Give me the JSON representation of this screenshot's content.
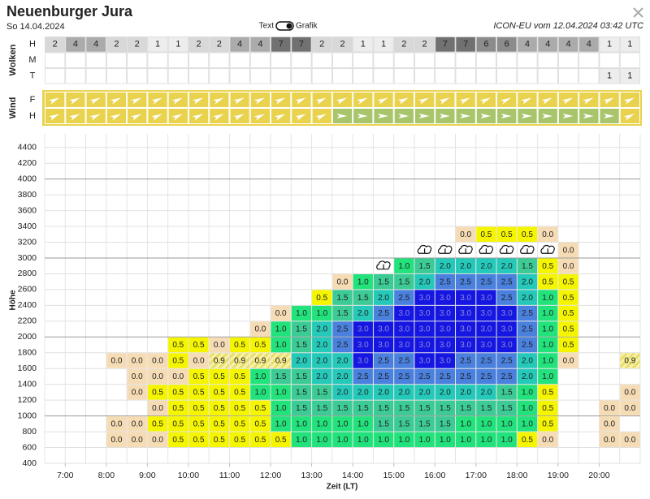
{
  "header": {
    "title": "Neuenburger Jura",
    "date": "So 14.04.2024",
    "toggle": {
      "left": "Text",
      "right": "Grafik"
    },
    "model": "ICON-EU vom 12.04.2024 03:42 UTC"
  },
  "clouds": {
    "label": "Wolken",
    "colors": {
      "1": "#ededed",
      "2": "#d8d8d8",
      "4": "#ababab",
      "6": "#8c8c8c",
      "7": "#717171"
    },
    "rows": [
      {
        "label": "H",
        "values": [
          "2",
          "4",
          "4",
          "2",
          "2",
          "1",
          "1",
          "2",
          "2",
          "4",
          "4",
          "7",
          "7",
          "2",
          "2",
          "1",
          "1",
          "2",
          "2",
          "7",
          "7",
          "6",
          "6",
          "4",
          "4",
          "4",
          "4",
          "1",
          "1"
        ]
      },
      {
        "label": "M",
        "values": [
          null,
          null,
          null,
          null,
          null,
          null,
          null,
          null,
          null,
          null,
          null,
          null,
          null,
          null,
          null,
          null,
          null,
          null,
          null,
          null,
          null,
          null,
          null,
          null,
          null,
          null,
          null,
          null,
          null
        ]
      },
      {
        "label": "T",
        "values": [
          null,
          null,
          null,
          null,
          null,
          null,
          null,
          null,
          null,
          null,
          null,
          null,
          null,
          null,
          null,
          null,
          null,
          null,
          null,
          null,
          null,
          null,
          null,
          null,
          null,
          null,
          null,
          "1",
          "1"
        ]
      }
    ]
  },
  "wind": {
    "label": "Wind",
    "palette": {
      "y": "#e9d34e",
      "g": "#a9c56c"
    },
    "rows": [
      {
        "label": "F",
        "codes": "yyyyyyyyyyyyyyyyyyyyyyyyyyyyy"
      },
      {
        "label": "H",
        "codes": "yyyyyyyyyyyyyyggggggggggggggy"
      }
    ]
  },
  "height_chart": {
    "y_label": "Höhe",
    "x_label": "Zeit (LT)",
    "ylim": [
      400,
      4500
    ],
    "xlim": [
      6.5,
      21
    ],
    "yticks": [
      400,
      600,
      800,
      1000,
      1200,
      1400,
      1600,
      1800,
      2000,
      2200,
      2400,
      2600,
      2800,
      3000,
      3200,
      3400,
      3600,
      3800,
      4000,
      4200,
      4400
    ],
    "major_yticks": [
      1000,
      2000,
      3000,
      4000
    ],
    "xticks": [
      {
        "value": 7,
        "label": "7:00"
      },
      {
        "value": 8,
        "label": "8:00"
      },
      {
        "value": 9,
        "label": "9:00"
      },
      {
        "value": 10,
        "label": "10:00"
      },
      {
        "value": 11,
        "label": "11:00"
      },
      {
        "value": 12,
        "label": "12:00"
      },
      {
        "value": 13,
        "label": "13:00"
      },
      {
        "value": 14,
        "label": "14:00"
      },
      {
        "value": 15,
        "label": "15:00"
      },
      {
        "value": 16,
        "label": "16:00"
      },
      {
        "value": 17,
        "label": "17:00"
      },
      {
        "value": 18,
        "label": "18:00"
      },
      {
        "value": 19,
        "label": "19:00"
      },
      {
        "value": 20,
        "label": "20:00"
      }
    ],
    "cell_colors": {
      "0.0": "#f6dcb5",
      "0.5": "#f5f500",
      "0.9": "#f7f2a8",
      "1.0": "#22e27c",
      "1.5": "#3ccb95",
      "2.0": "#24c9b9",
      "2.5": "#4a80de",
      "3.0": "#1616e2"
    },
    "hatched": [
      "0.9"
    ],
    "rows": [
      {
        "from": 600,
        "to": 800,
        "cells": [
          null,
          null,
          null,
          "0.0",
          "0.0",
          "0.0",
          "0.5",
          "0.5",
          "0.5",
          "0.5",
          "0.5",
          "0.5",
          "1.0",
          "1.0",
          "1.0",
          "1.0",
          "1.0",
          "1.0",
          "1.0",
          "1.0",
          "1.0",
          "1.0",
          "1.0",
          "0.5",
          "0.0",
          null,
          null,
          "0.0",
          "0.0"
        ]
      },
      {
        "from": 800,
        "to": 1000,
        "cells": [
          null,
          null,
          null,
          "0.0",
          "0.0",
          "0.5",
          "0.5",
          "0.5",
          "0.5",
          "0.5",
          "0.5",
          "1.0",
          "1.0",
          "1.0",
          "1.0",
          "1.0",
          "1.5",
          "1.5",
          "1.5",
          "1.5",
          "1.0",
          "1.0",
          "1.0",
          "1.0",
          "0.5",
          null,
          null,
          "0.0",
          null
        ]
      },
      {
        "from": 1000,
        "to": 1200,
        "cells": [
          null,
          null,
          null,
          null,
          null,
          "0.0",
          "0.5",
          "0.5",
          "0.5",
          "0.5",
          "0.5",
          "1.0",
          "1.5",
          "1.5",
          "1.5",
          "1.5",
          "1.5",
          "1.5",
          "1.5",
          "1.5",
          "1.5",
          "1.5",
          "1.5",
          "1.0",
          "0.5",
          null,
          null,
          "0.0",
          "0.0"
        ]
      },
      {
        "from": 1200,
        "to": 1400,
        "cells": [
          null,
          null,
          null,
          null,
          "0.0",
          "0.5",
          "0.5",
          "0.5",
          "0.5",
          "0.5",
          "1.0",
          "1.0",
          "1.5",
          "1.5",
          "2.0",
          "2.0",
          "2.0",
          "2.0",
          "2.0",
          "2.0",
          "2.0",
          "2.0",
          "1.5",
          "1.0",
          "0.5",
          null,
          null,
          null,
          "0.0"
        ]
      },
      {
        "from": 1400,
        "to": 1600,
        "cells": [
          null,
          null,
          null,
          null,
          "0.0",
          "0.0",
          "0.0",
          "0.5",
          "0.5",
          "0.5",
          "1.0",
          "1.5",
          "1.5",
          "2.0",
          "2.0",
          "2.5",
          "2.5",
          "2.5",
          "2.5",
          "2.5",
          "2.5",
          "2.5",
          "2.5",
          "2.0",
          "1.0",
          null,
          null,
          null,
          null
        ]
      },
      {
        "from": 1600,
        "to": 1800,
        "cells": [
          null,
          null,
          null,
          "0.0",
          "0.0",
          "0.0",
          "0.5",
          "0.0",
          "0.9",
          "0.9",
          "0.9",
          "0.9",
          "2.0",
          "2.0",
          "2.0",
          "3.0",
          "2.5",
          "2.5",
          "3.0",
          "3.0",
          "2.5",
          "2.5",
          "2.5",
          "2.0",
          "1.0",
          "0.0",
          null,
          null,
          "0.9"
        ]
      },
      {
        "from": 1800,
        "to": 2000,
        "cells": [
          null,
          null,
          null,
          null,
          null,
          null,
          "0.5",
          "0.5",
          "0.0",
          "0.5",
          "0.5",
          "1.0",
          "1.5",
          "2.0",
          "2.5",
          "3.0",
          "3.0",
          "3.0",
          "3.0",
          "3.0",
          "3.0",
          "3.0",
          "3.0",
          "2.5",
          "1.0",
          "0.5",
          null,
          null,
          null
        ]
      },
      {
        "from": 2000,
        "to": 2200,
        "cells": [
          null,
          null,
          null,
          null,
          null,
          null,
          null,
          null,
          null,
          null,
          "0.0",
          "1.0",
          "1.5",
          "2.0",
          "2.5",
          "3.0",
          "3.0",
          "3.0",
          "3.0",
          "3.0",
          "3.0",
          "3.0",
          "3.0",
          "2.5",
          "1.0",
          "0.5",
          null,
          null,
          null
        ]
      },
      {
        "from": 2200,
        "to": 2400,
        "cells": [
          null,
          null,
          null,
          null,
          null,
          null,
          null,
          null,
          null,
          null,
          null,
          "0.0",
          "1.0",
          "1.0",
          "1.5",
          "2.0",
          "2.5",
          "3.0",
          "3.0",
          "3.0",
          "3.0",
          "3.0",
          "3.0",
          "2.5",
          "1.0",
          "0.5",
          null,
          null,
          null
        ]
      },
      {
        "from": 2400,
        "to": 2600,
        "cells": [
          null,
          null,
          null,
          null,
          null,
          null,
          null,
          null,
          null,
          null,
          null,
          null,
          null,
          "0.5",
          "1.5",
          "1.5",
          "2.0",
          "2.5",
          "3.0",
          "3.0",
          "3.0",
          "3.0",
          "2.5",
          "2.0",
          "1.0",
          "0.5",
          null,
          null,
          null
        ]
      },
      {
        "from": 2600,
        "to": 2800,
        "cells": [
          null,
          null,
          null,
          null,
          null,
          null,
          null,
          null,
          null,
          null,
          null,
          null,
          null,
          null,
          "0.0",
          "1.0",
          "1.5",
          "1.5",
          "2.0",
          "2.5",
          "2.5",
          "2.5",
          "2.5",
          "2.0",
          "0.5",
          "0.5",
          null,
          null,
          null
        ]
      },
      {
        "from": 2800,
        "to": 3000,
        "cells": [
          null,
          null,
          null,
          null,
          null,
          null,
          null,
          null,
          null,
          null,
          null,
          null,
          null,
          null,
          null,
          null,
          null,
          "1.0",
          "1.5",
          "2.0",
          "2.0",
          "2.0",
          "2.0",
          "1.5",
          "0.5",
          "0.0",
          null,
          null,
          null
        ]
      },
      {
        "from": 3000,
        "to": 3200,
        "cells": [
          null,
          null,
          null,
          null,
          null,
          null,
          null,
          null,
          null,
          null,
          null,
          null,
          null,
          null,
          null,
          null,
          null,
          null,
          null,
          null,
          null,
          null,
          null,
          null,
          null,
          "0.0",
          null,
          null,
          null
        ]
      },
      {
        "from": 3200,
        "to": 3400,
        "cells": [
          null,
          null,
          null,
          null,
          null,
          null,
          null,
          null,
          null,
          null,
          null,
          null,
          null,
          null,
          null,
          null,
          null,
          null,
          null,
          null,
          "0.0",
          "0.5",
          "0.5",
          "0.5",
          "0.0",
          null,
          null,
          null,
          null
        ]
      }
    ]
  }
}
